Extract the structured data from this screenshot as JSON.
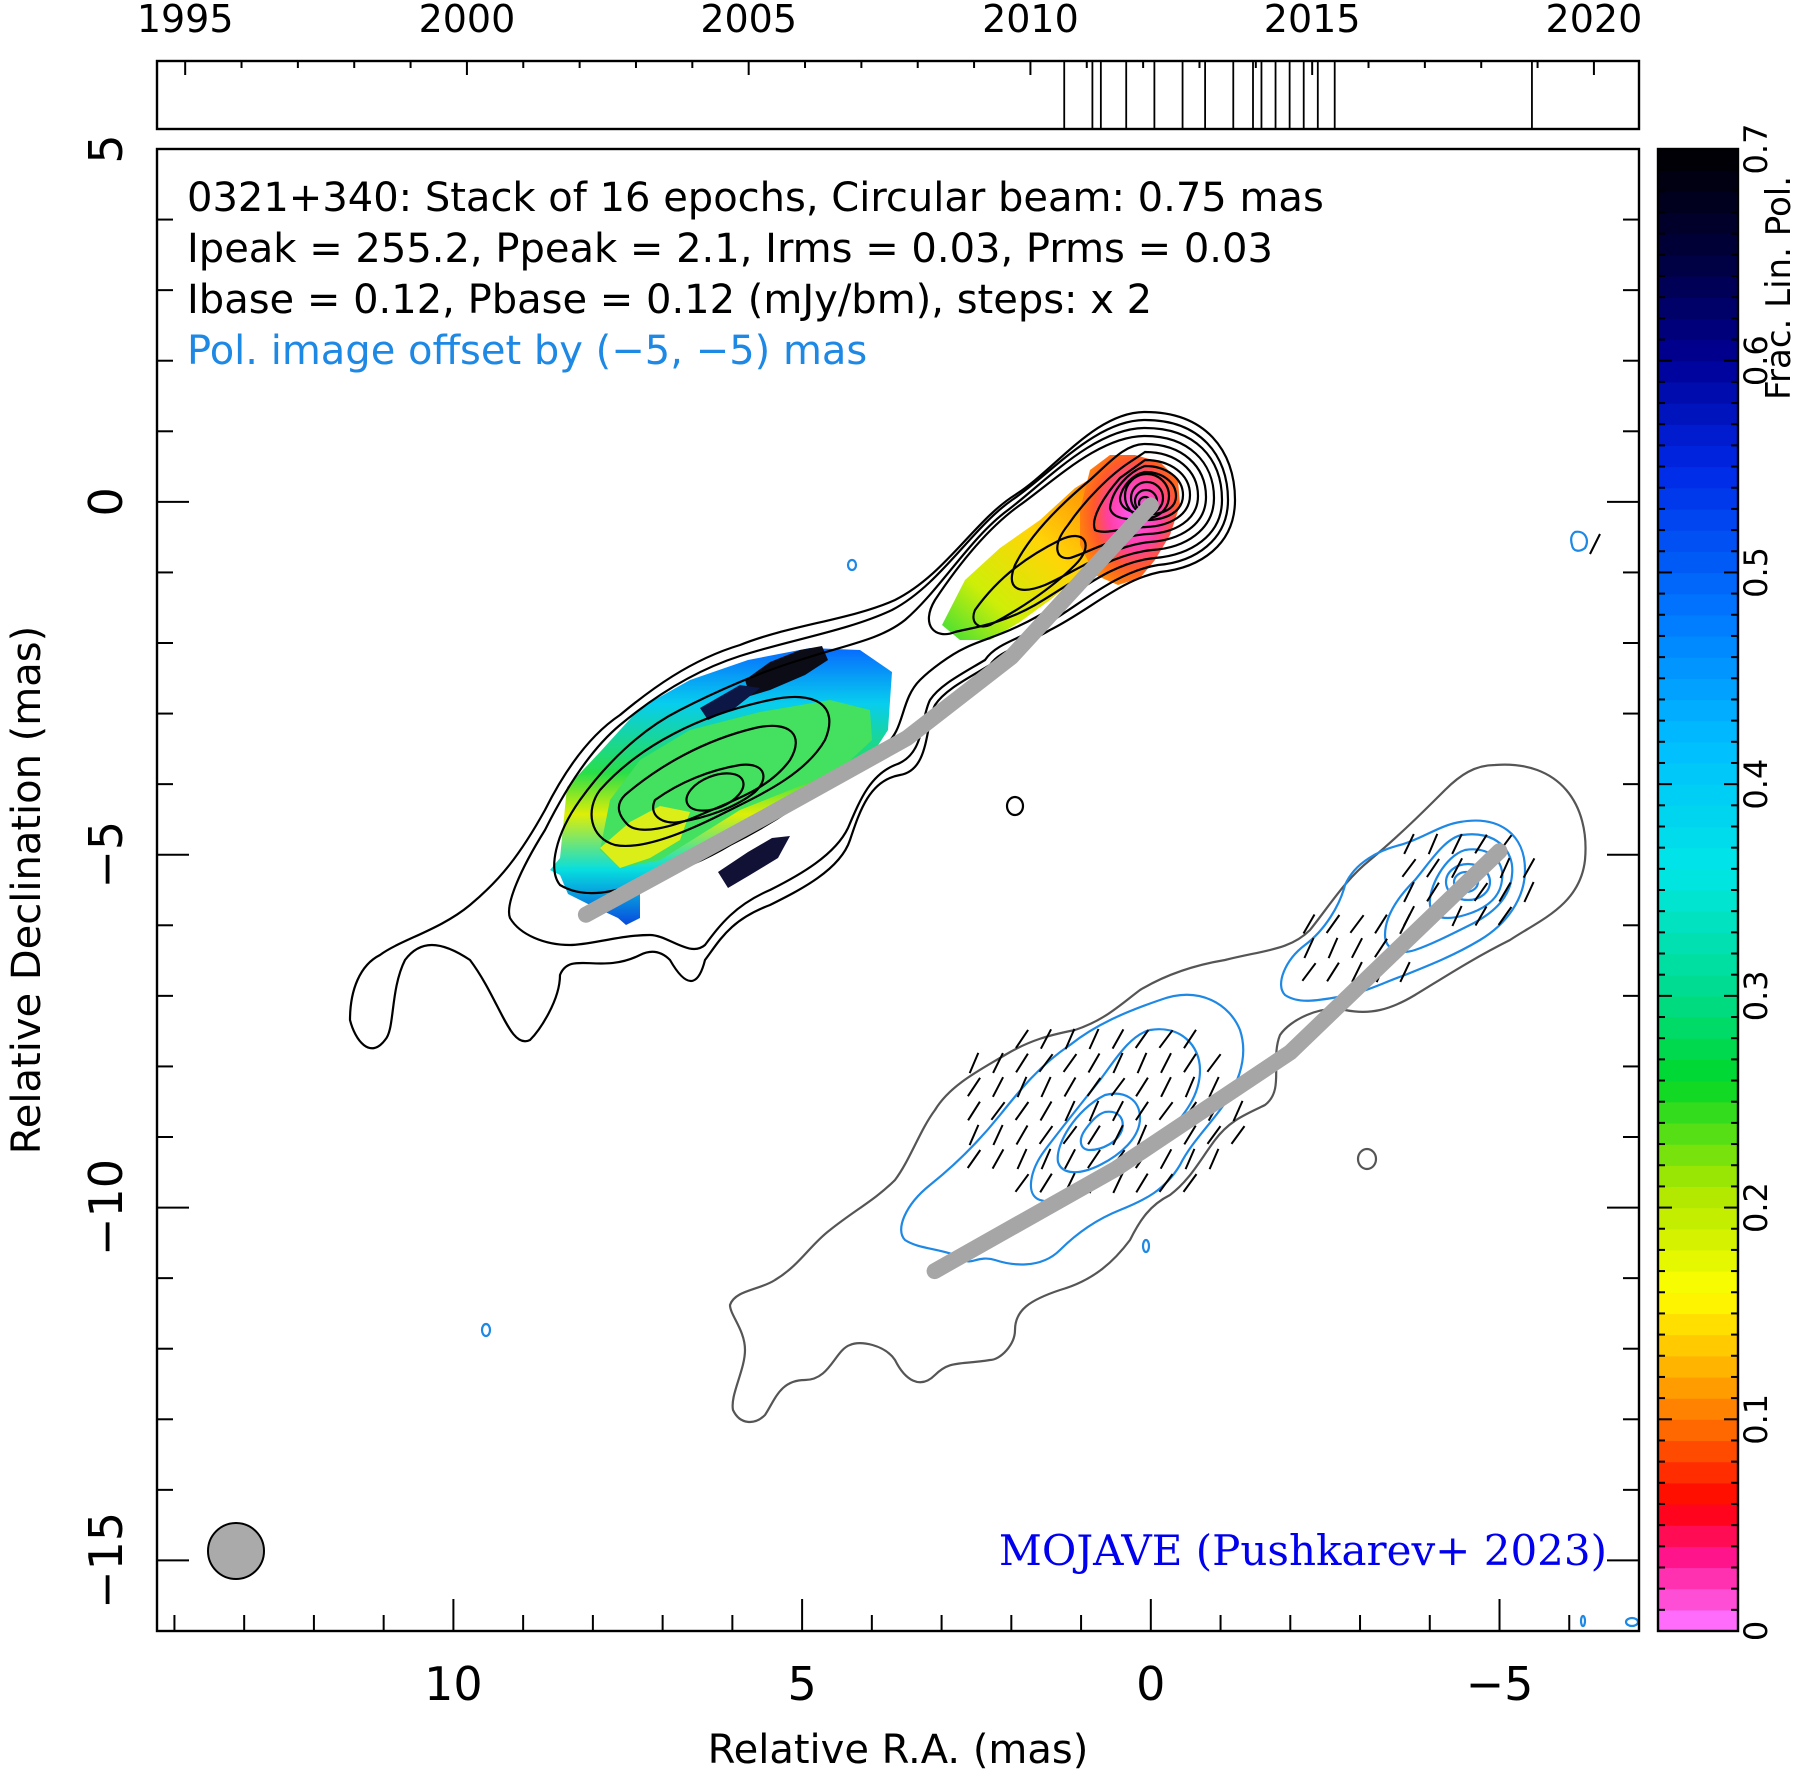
{
  "chart_data": {
    "type": "contour-map",
    "source_name": "0321+340",
    "info_lines": [
      "0321+340: Stack of 16 epochs, Circular beam: 0.75 mas",
      "Ipeak = 255.2, Ppeak = 2.1, Irms = 0.03, Prms = 0.03",
      "Ibase = 0.12, Pbase = 0.12 (mJy/bm), steps: x 2"
    ],
    "offset_note": "Pol. image offset by (−5, −5) mas",
    "credit": "MOJAVE (Pushkarev+ 2023)",
    "xlabel": "Relative R.A. (mas)",
    "ylabel": "Relative Declination (mas)",
    "colorbar_label": "Frac. Lin. Pol.",
    "xlim": [
      14.25,
      -7
    ],
    "ylim": [
      -16,
      5
    ],
    "x_ticks": [
      10,
      5,
      0,
      -5
    ],
    "x_tick_labels": [
      "10",
      "5",
      "0",
      "−5"
    ],
    "y_ticks": [
      5,
      0,
      -5,
      -10,
      -15
    ],
    "y_tick_labels": [
      "5",
      "0",
      "−5",
      "−10",
      "−15"
    ],
    "colorbar_ticks": [
      0,
      0.1,
      0.2,
      0.3,
      0.4,
      0.5,
      0.6,
      0.7
    ],
    "colorbar_tick_labels": [
      "0",
      "0.1",
      "0.2",
      "0.3",
      "0.4",
      "0.5",
      "0.6",
      "0.7"
    ],
    "colorbar_range": [
      0,
      0.7
    ],
    "timeline": {
      "year_range": [
        1994.5,
        2020.8
      ],
      "year_ticks": [
        1995,
        2000,
        2005,
        2010,
        2015,
        2020
      ],
      "year_tick_labels": [
        "1995",
        "2000",
        "2005",
        "2010",
        "2015",
        "2020"
      ],
      "epochs": [
        2010.6,
        2011.1,
        2011.25,
        2011.7,
        2012.2,
        2012.7,
        2013.1,
        2013.6,
        2013.95,
        2014.1,
        2014.35,
        2014.6,
        2014.85,
        2015.1,
        2015.4,
        2018.9
      ]
    },
    "beam_diameter_mas": 0.75,
    "ridge_line": [
      [
        8.1,
        -5.85
      ],
      [
        5.5,
        -4.45
      ],
      [
        3.5,
        -3.35
      ],
      [
        2.0,
        -2.2
      ],
      [
        0.0,
        -0.05
      ]
    ],
    "pol_ridge_line": [
      [
        3.1,
        -10.9
      ],
      [
        0.5,
        -9.45
      ],
      [
        -2.0,
        -7.8
      ],
      [
        -5.0,
        -4.95
      ]
    ],
    "colors": {
      "title_text": "#000000",
      "note_text": "#1e88e5",
      "credit_text": "#0000ee",
      "total_intensity_contours": "#000000",
      "offset_intensity_contours": "#555555",
      "pol_contours": "#1e88e5",
      "ridge_line": "#a6a6a6",
      "beam": "#aaaaaa"
    }
  }
}
